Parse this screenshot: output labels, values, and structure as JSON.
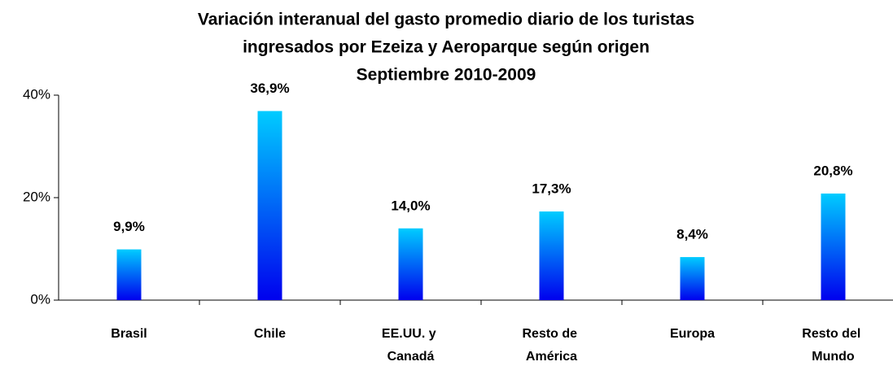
{
  "chart_data": {
    "type": "bar",
    "title": [
      "Variación interanual del gasto promedio diario de los turistas",
      "ingresados por Ezeiza y Aeroparque según origen"
    ],
    "subtitle": "Septiembre 2010-2009",
    "categories": [
      "Brasil",
      "Chile",
      "EE.UU. y Canadá",
      "Resto de América",
      "Europa",
      "Resto del Mundo"
    ],
    "values": [
      9.9,
      36.9,
      14.0,
      17.3,
      8.4,
      20.8
    ],
    "value_labels": [
      "9,9%",
      "36,9%",
      "14,0%",
      "17,3%",
      "8,4%",
      "20,8%"
    ],
    "gradient": [
      "#00ccff",
      "#0000ee"
    ],
    "ylim": [
      0,
      40
    ],
    "yticks": [
      {
        "value": 0,
        "label": "0%"
      },
      {
        "value": 20,
        "label": "20%"
      },
      {
        "value": 40,
        "label": "40%"
      }
    ]
  }
}
